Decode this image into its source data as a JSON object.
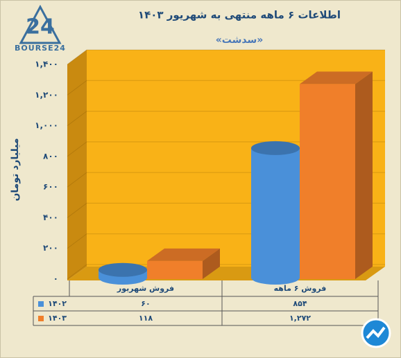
{
  "logo": {
    "mark": "24",
    "text": "BOURSE24"
  },
  "chart_data": {
    "type": "bar3d",
    "title": "اطلاعات ۶ ماهه منتهی به شهریور ۱۴۰۳",
    "subtitle": "«سدشت»",
    "y_label": "میلیارد تومان",
    "categories": [
      "فروش شهریور",
      "فروش ۶ ماهه"
    ],
    "series": [
      {
        "name": "۱۴۰۲",
        "color": "#4a90d9",
        "shape": "cylinder",
        "values": [
          60,
          854
        ],
        "value_labels": [
          "۶۰",
          "۸۵۴"
        ]
      },
      {
        "name": "۱۴۰۳",
        "color": "#f07f2a",
        "shape": "box",
        "values": [
          118,
          1272
        ],
        "value_labels": [
          "۱۱۸",
          "۱,۲۷۲"
        ]
      }
    ],
    "ylim": [
      0,
      1400
    ],
    "yticks": [
      {
        "value": 0,
        "label": "۰"
      },
      {
        "value": 200,
        "label": "۲۰۰"
      },
      {
        "value": 400,
        "label": "۴۰۰"
      },
      {
        "value": 600,
        "label": "۶۰۰"
      },
      {
        "value": 800,
        "label": "۸۰۰"
      },
      {
        "value": 1000,
        "label": "۱,۰۰۰"
      },
      {
        "value": 1200,
        "label": "۱,۲۰۰"
      },
      {
        "value": 1400,
        "label": "۱,۴۰۰"
      }
    ],
    "grid": true
  }
}
